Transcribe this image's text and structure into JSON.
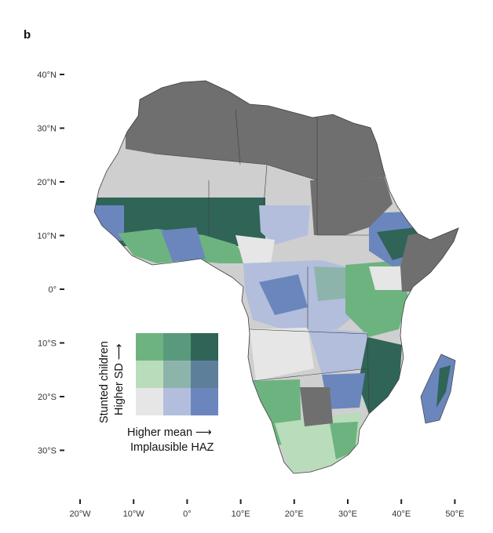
{
  "panel_label": "b",
  "map": {
    "lat_ticks": [
      "40°N",
      "30°N",
      "20°N",
      "10°N",
      "0°",
      "10°S",
      "20°S",
      "30°S"
    ],
    "lon_ticks": [
      "20°W",
      "10°W",
      "0°",
      "10°E",
      "20°E",
      "30°E",
      "40°E",
      "50°E"
    ],
    "colors": {
      "land_nodata": "#6f6f6f",
      "land_light": "#cfcfcf",
      "ocean": "#ffffff",
      "border": "#3d3d3d"
    }
  },
  "legend": {
    "y_axis_line1": "Stunted children",
    "y_axis_line2": "Higher SD ⟶",
    "x_axis_line1": "Higher mean ⟶",
    "x_axis_line2": "Implausible HAZ",
    "grid_colors": [
      [
        "#6db380",
        "#5a9a7c",
        "#2f6457"
      ],
      [
        "#b9dcba",
        "#8db4ab",
        "#5d7f99"
      ],
      [
        "#e6e6e6",
        "#b2bedc",
        "#6b86bd"
      ]
    ]
  }
}
